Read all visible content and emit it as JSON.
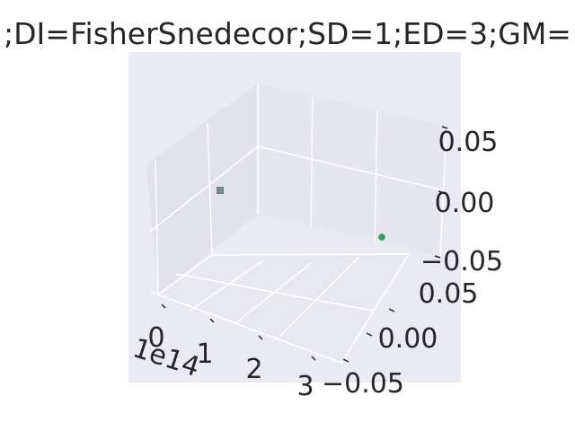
{
  "chart_data": {
    "type": "scatter",
    "title": ";DI=FisherSnedecor;SD=1;ED=3;GM=",
    "projection": "3d",
    "style": "seaborn-darkgrid",
    "grid": true,
    "x_offset_label": "1e14",
    "x_ticks": [
      "0",
      "1",
      "2",
      "3"
    ],
    "y_ticks": [
      "0.05",
      "0.00",
      "−0.05"
    ],
    "z_ticks": [
      "0.05",
      "0.00",
      "−0.05"
    ],
    "xlim": [
      0,
      3.2
    ],
    "ylim": [
      -0.06,
      0.06
    ],
    "zlim": [
      -0.06,
      0.06
    ],
    "points": [
      {
        "x": 0,
        "y": 0,
        "z": 0,
        "color": "#7a8f8a",
        "marker": "square"
      },
      {
        "x": 3.2,
        "y": 0,
        "z": 0,
        "color": "#2ea05f",
        "marker": "circle"
      }
    ]
  },
  "colors": {
    "pane_back": "#e6e6ee",
    "pane_floor": "#ebebf1",
    "pane_side": "#e3e3eb",
    "grid": "#ffffff",
    "text": "#262626",
    "panel": "#eaeaf2"
  }
}
